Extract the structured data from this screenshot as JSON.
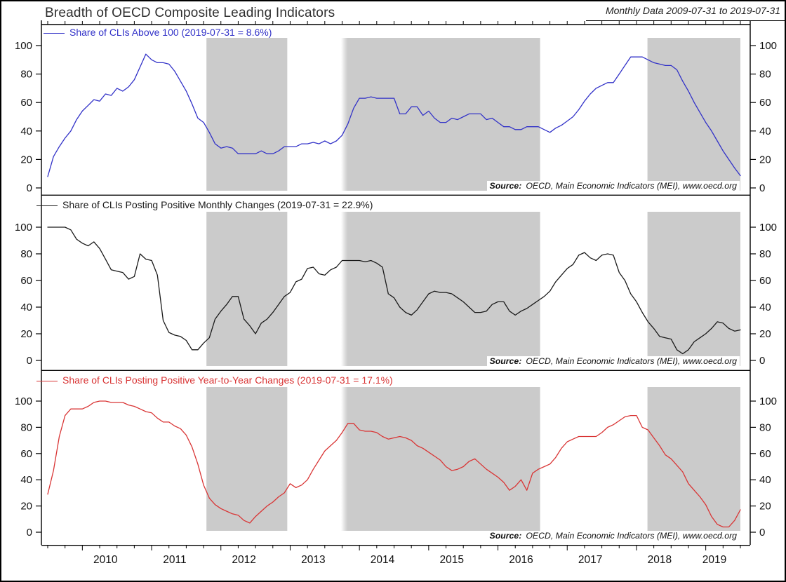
{
  "header": {
    "title": "Breadth of OECD Composite Leading Indicators",
    "subtitle": "Monthly Data 2009-07-31 to 2019-07-31"
  },
  "source_note": {
    "label": "Source:",
    "text": "OECD, Main Economic Indicators (MEI), www.oecd.org"
  },
  "colors": {
    "series_above_100": "#3232c8",
    "series_monthly_changes": "#1a1a1a",
    "series_yearly_changes": "#d93535",
    "shaded_band": "#cbcbcb",
    "frame": "#000000",
    "tick_label": "#111111"
  },
  "chart_data": {
    "type": "line",
    "frequency": "monthly",
    "x_start": "2009-07-31",
    "x_end": "2019-07-31",
    "n_points": 121,
    "ylim": [
      0,
      100
    ],
    "y_ticks": [
      0,
      20,
      40,
      60,
      80,
      100
    ],
    "x_year_labels": [
      "2010",
      "2011",
      "2012",
      "2013",
      "2014",
      "2015",
      "2016",
      "2017",
      "2018",
      "2019"
    ],
    "shaded_bands_month_index": [
      [
        27.5,
        41.5
      ],
      [
        51.9,
        85.3
      ],
      [
        103.9,
        120
      ]
    ],
    "panels": [
      {
        "legend": "Share of CLIs Above 100 (2019-07-31 = 8.6%)",
        "color": "#3232c8",
        "last_value": 8.6,
        "values": [
          8,
          22,
          29,
          35,
          40,
          48,
          54,
          58,
          62,
          61,
          66,
          65,
          70,
          68,
          71,
          76,
          85,
          94,
          90,
          88,
          88,
          87,
          82,
          75,
          68,
          59,
          49,
          46,
          39,
          31,
          28,
          29,
          28,
          24,
          24,
          24,
          24,
          26,
          24,
          24,
          26,
          29,
          29,
          29,
          31,
          31,
          32,
          31,
          33,
          31,
          33,
          37,
          45,
          56,
          63,
          63,
          64,
          63,
          63,
          63,
          63,
          52,
          52,
          57,
          57,
          51,
          54,
          49,
          46,
          46,
          49,
          48,
          50,
          52,
          52,
          52,
          48,
          49,
          46,
          43,
          43,
          41,
          41,
          43,
          43,
          43,
          41,
          39,
          42,
          44,
          47,
          50,
          55,
          61,
          66,
          70,
          72,
          74,
          74,
          80,
          86,
          92,
          92,
          92,
          90,
          88,
          87,
          86,
          86,
          83,
          75,
          68,
          60,
          53,
          46,
          40,
          33,
          26,
          20,
          14,
          8.6
        ]
      },
      {
        "legend": "Share of CLIs Posting Positive Monthly Changes (2019-07-31 = 22.9%)",
        "color": "#1a1a1a",
        "last_value": 22.9,
        "values": [
          100,
          100,
          100,
          100,
          98,
          91,
          88,
          86,
          89,
          84,
          76,
          68,
          67,
          66,
          61,
          63,
          80,
          76,
          75,
          64,
          30,
          21,
          19,
          18,
          15,
          8,
          8,
          13,
          17,
          31,
          37,
          42,
          48,
          48,
          31,
          26,
          20,
          28,
          31,
          36,
          42,
          48,
          51,
          59,
          61,
          69,
          70,
          65,
          64,
          68,
          70,
          75,
          75,
          75,
          75,
          74,
          75,
          73,
          70,
          50,
          47,
          40,
          36,
          34,
          38,
          44,
          50,
          52,
          51,
          51,
          50,
          47,
          44,
          40,
          36,
          36,
          37,
          42,
          44,
          44,
          37,
          34,
          37,
          39,
          42,
          45,
          48,
          52,
          59,
          64,
          69,
          72,
          79,
          81,
          77,
          75,
          79,
          80,
          79,
          66,
          60,
          50,
          44,
          36,
          29,
          24,
          18,
          17,
          16,
          8,
          5,
          8,
          14,
          17,
          20,
          24,
          29,
          28,
          24,
          22,
          22.9
        ]
      },
      {
        "legend": "Share of CLIs Posting Positive Year-to-Year Changes (2019-07-31 = 17.1%)",
        "color": "#d93535",
        "last_value": 17.1,
        "values": [
          29,
          47,
          73,
          89,
          94,
          94,
          94,
          96,
          99,
          100,
          100,
          99,
          99,
          99,
          97,
          96,
          94,
          92,
          91,
          87,
          84,
          84,
          81,
          79,
          74,
          65,
          52,
          36,
          26,
          21,
          18,
          16,
          14,
          13,
          9,
          7,
          12,
          16,
          20,
          23,
          27,
          30,
          37,
          34,
          36,
          40,
          48,
          55,
          62,
          66,
          70,
          76,
          83,
          83,
          78,
          77,
          77,
          76,
          73,
          71,
          72,
          73,
          72,
          70,
          66,
          64,
          61,
          58,
          55,
          50,
          47,
          48,
          50,
          54,
          56,
          52,
          48,
          45,
          42,
          38,
          32,
          35,
          40,
          32,
          45,
          48,
          50,
          52,
          57,
          64,
          69,
          71,
          73,
          73,
          73,
          73,
          76,
          80,
          82,
          85,
          88,
          89,
          89,
          80,
          78,
          72,
          66,
          59,
          56,
          51,
          46,
          37,
          32,
          27,
          21,
          12,
          6,
          4,
          4,
          9,
          17.1
        ]
      }
    ]
  }
}
